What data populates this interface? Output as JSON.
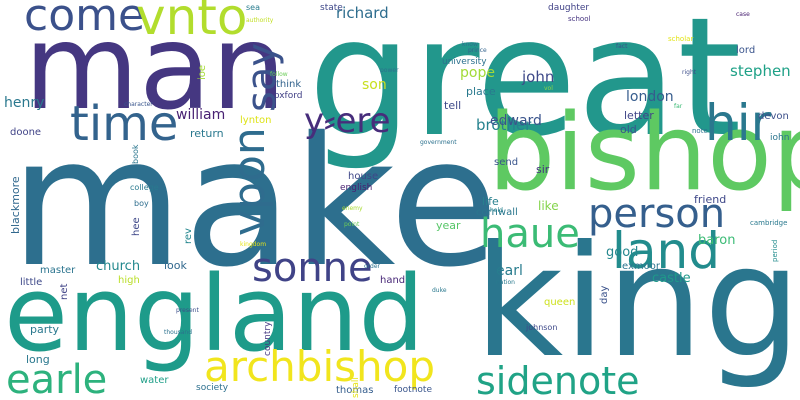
{
  "words": [
    {
      "text": "great",
      "color": "#22978c"
    },
    {
      "text": "make",
      "color": "#2d6f8e"
    },
    {
      "text": "man",
      "color": "#453781"
    },
    {
      "text": "england",
      "color": "#1e9b8a"
    },
    {
      "text": "king",
      "color": "#2a768e"
    },
    {
      "text": "bishop",
      "color": "#5ec962"
    },
    {
      "text": "come",
      "color": "#3b518b"
    },
    {
      "text": "vnto",
      "color": "#b2dd2d"
    },
    {
      "text": "time",
      "color": "#33638d"
    },
    {
      "text": "hir",
      "color": "#2a788e"
    },
    {
      "text": "person",
      "color": "#355f8d"
    },
    {
      "text": "haue",
      "color": "#3bbb75"
    },
    {
      "text": "land",
      "color": "#228c8d"
    },
    {
      "text": "sonne",
      "color": "#404387"
    },
    {
      "text": "archbishop",
      "color": "#f1e51d"
    },
    {
      "text": "earle",
      "color": "#2db27d"
    },
    {
      "text": "sidenote",
      "color": "#20a386"
    },
    {
      "text": "vpon",
      "color": "#2f6c8e"
    },
    {
      "text": "say",
      "color": "#3b528b"
    },
    {
      "text": "y⸗ere",
      "color": "#472d7b"
    },
    {
      "text": "richard",
      "color": "#2e6d8e"
    },
    {
      "text": "brother",
      "color": "#26828e"
    },
    {
      "text": "london",
      "color": "#365c8d"
    },
    {
      "text": "stephen",
      "color": "#1fa187"
    },
    {
      "text": "pope",
      "color": "#a2da37"
    },
    {
      "text": "john",
      "color": "#3e4989"
    },
    {
      "text": "son",
      "color": "#c8e020"
    },
    {
      "text": "henry",
      "color": "#2a788e"
    },
    {
      "text": "william",
      "color": "#482173"
    },
    {
      "text": "edward",
      "color": "#3a548c"
    },
    {
      "text": "letter",
      "color": "#404588"
    },
    {
      "text": "old",
      "color": "#39558c"
    },
    {
      "text": "tell",
      "color": "#3e4a89"
    },
    {
      "text": "place",
      "color": "#29798e"
    },
    {
      "text": "university",
      "color": "#2c718e"
    },
    {
      "text": "think",
      "color": "#33638d"
    },
    {
      "text": "oxford",
      "color": "#424186"
    },
    {
      "text": "lynton",
      "color": "#dde318"
    },
    {
      "text": "return",
      "color": "#2a788e"
    },
    {
      "text": "doone",
      "color": "#404387"
    },
    {
      "text": "blackmore",
      "color": "#31688e"
    },
    {
      "text": "house",
      "color": "#3f4788"
    },
    {
      "text": "english",
      "color": "#481f70"
    },
    {
      "text": "send",
      "color": "#39558c"
    },
    {
      "text": "sir",
      "color": "#453581"
    },
    {
      "text": "life",
      "color": "#27808e"
    },
    {
      "text": "cornwall",
      "color": "#2a778e"
    },
    {
      "text": "like",
      "color": "#84d44b"
    },
    {
      "text": "friend",
      "color": "#3f4889"
    },
    {
      "text": "year",
      "color": "#56c667"
    },
    {
      "text": "church",
      "color": "#23898e"
    },
    {
      "text": "baron",
      "color": "#3bbb75"
    },
    {
      "text": "good",
      "color": "#24878e"
    },
    {
      "text": "look",
      "color": "#31688e"
    },
    {
      "text": "earl",
      "color": "#287c8e"
    },
    {
      "text": "castle",
      "color": "#1f998a"
    },
    {
      "text": "exmoor",
      "color": "#2b748e"
    },
    {
      "text": "master",
      "color": "#2b748e"
    },
    {
      "text": "little",
      "color": "#3e4989"
    },
    {
      "text": "high",
      "color": "#bade28"
    },
    {
      "text": "hand",
      "color": "#482878"
    },
    {
      "text": "party",
      "color": "#2a788e"
    },
    {
      "text": "long",
      "color": "#2a788e"
    },
    {
      "text": "water",
      "color": "#1f9f88"
    },
    {
      "text": "society",
      "color": "#2d708e"
    },
    {
      "text": "thomas",
      "color": "#355e8d"
    },
    {
      "text": "footnote",
      "color": "#39558c"
    },
    {
      "text": "queen",
      "color": "#cde11d"
    },
    {
      "text": "johnson",
      "color": "#3e4989"
    },
    {
      "text": "college",
      "color": "#29798e"
    },
    {
      "text": "boy",
      "color": "#2e6e8e"
    },
    {
      "text": "lord",
      "color": "#3a548c"
    },
    {
      "text": "devon",
      "color": "#3c4f8a"
    },
    {
      "text": "iohn",
      "color": "#2b758e"
    },
    {
      "text": "school",
      "color": "#463480"
    },
    {
      "text": "daughter",
      "color": "#414287"
    },
    {
      "text": "state",
      "color": "#3f4889"
    },
    {
      "text": "sea",
      "color": "#287c8e"
    },
    {
      "text": "authority",
      "color": "#c2df23"
    },
    {
      "text": "follow",
      "color": "#6ccd5a"
    },
    {
      "text": "power",
      "color": "#2d708e"
    },
    {
      "text": "character",
      "color": "#39558c"
    },
    {
      "text": "government",
      "color": "#2c718e"
    },
    {
      "text": "prince",
      "color": "#33638d"
    },
    {
      "text": "scholar",
      "color": "#e2e418"
    },
    {
      "text": "fact",
      "color": "#3b528b"
    },
    {
      "text": "right",
      "color": "#3d4e8a"
    },
    {
      "text": "case",
      "color": "#482071"
    },
    {
      "text": "far",
      "color": "#3bbb75"
    },
    {
      "text": "note",
      "color": "#2b748e"
    },
    {
      "text": "cambridge",
      "color": "#29798e"
    },
    {
      "text": "period",
      "color": "#228c8d"
    },
    {
      "text": "rev",
      "color": "#24868e"
    },
    {
      "text": "hee",
      "color": "#3f4889"
    },
    {
      "text": "net",
      "color": "#414487"
    },
    {
      "text": "enemy",
      "color": "#a8db34"
    },
    {
      "text": "point",
      "color": "#6ece58"
    },
    {
      "text": "order",
      "color": "#2c718e"
    },
    {
      "text": "hold",
      "color": "#26828e"
    },
    {
      "text": "kingdom",
      "color": "#e5e419"
    },
    {
      "text": "duke",
      "color": "#2a788e"
    },
    {
      "text": "nation",
      "color": "#29798e"
    },
    {
      "text": "present",
      "color": "#3c4f8a"
    },
    {
      "text": "thousand",
      "color": "#2c728e"
    },
    {
      "text": "country",
      "color": "#453882"
    },
    {
      "text": "shall",
      "color": "#e7e419"
    },
    {
      "text": "book",
      "color": "#2a768e"
    },
    {
      "text": "know",
      "color": "#a5db36"
    },
    {
      "text": "vol",
      "color": "#2c728e"
    },
    {
      "text": "ioe",
      "color": "#8bd646"
    },
    {
      "text": "day",
      "color": "#3b528b"
    }
  ]
}
